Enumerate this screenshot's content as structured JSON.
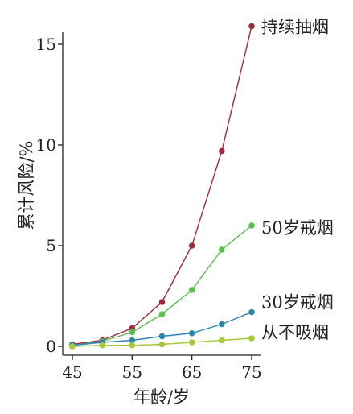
{
  "chart_data": {
    "type": "line",
    "xlabel": "年龄/岁",
    "ylabel": "累计风险/%",
    "x": [
      45,
      50,
      55,
      60,
      65,
      70,
      75
    ],
    "xlim": [
      44,
      76
    ],
    "ylim": [
      0,
      16
    ],
    "xticks": [
      45,
      55,
      65,
      75
    ],
    "yticks": [
      0,
      5,
      10,
      15
    ],
    "grid": false,
    "legend": "direct labels at line ends",
    "series": [
      {
        "name": "持续抽烟",
        "color": "#a3283a",
        "values": [
          0.1,
          0.3,
          0.9,
          2.2,
          5.0,
          9.7,
          15.9
        ]
      },
      {
        "name": "50岁戒烟",
        "color": "#58bf4b",
        "values": [
          0.05,
          0.25,
          0.7,
          1.6,
          2.8,
          4.8,
          6.0
        ]
      },
      {
        "name": "30岁戒烟",
        "color": "#2e86b3",
        "values": [
          0.05,
          0.2,
          0.3,
          0.5,
          0.65,
          1.1,
          1.7
        ]
      },
      {
        "name": "从不吸烟",
        "color": "#a6c93a",
        "values": [
          0.0,
          0.05,
          0.05,
          0.1,
          0.2,
          0.3,
          0.4
        ]
      }
    ]
  }
}
